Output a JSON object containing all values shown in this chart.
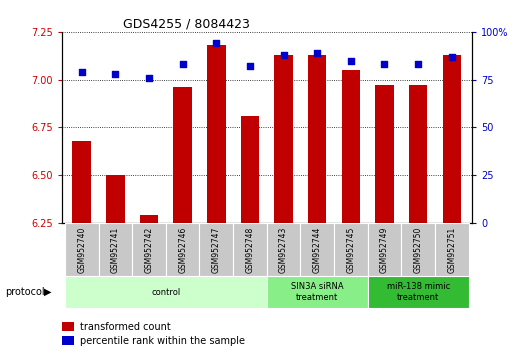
{
  "title": "GDS4255 / 8084423",
  "samples": [
    "GSM952740",
    "GSM952741",
    "GSM952742",
    "GSM952746",
    "GSM952747",
    "GSM952748",
    "GSM952743",
    "GSM952744",
    "GSM952745",
    "GSM952749",
    "GSM952750",
    "GSM952751"
  ],
  "transformed_count": [
    6.68,
    6.5,
    6.29,
    6.96,
    7.18,
    6.81,
    7.13,
    7.13,
    7.05,
    6.97,
    6.97,
    7.13
  ],
  "percentile_rank": [
    79,
    78,
    76,
    83,
    94,
    82,
    88,
    89,
    85,
    83,
    83,
    87
  ],
  "ylim_left": [
    6.25,
    7.25
  ],
  "ylim_right": [
    0,
    100
  ],
  "yticks_left": [
    6.25,
    6.5,
    6.75,
    7.0,
    7.25
  ],
  "yticks_right": [
    0,
    25,
    50,
    75,
    100
  ],
  "bar_color": "#C00000",
  "dot_color": "#0000CC",
  "bg_color": "#FFFFFF",
  "groups": [
    {
      "label": "control",
      "start": 0,
      "end": 5,
      "color": "#CCFFCC"
    },
    {
      "label": "SIN3A siRNA\ntreatment",
      "start": 6,
      "end": 8,
      "color": "#88EE88"
    },
    {
      "label": "miR-138 mimic\ntreatment",
      "start": 9,
      "end": 11,
      "color": "#33BB33"
    }
  ],
  "tick_label_color_left": "#CC0000",
  "tick_label_color_right": "#0000CC",
  "grid_color": "#000000",
  "legend_items": [
    {
      "label": "transformed count",
      "color": "#C00000"
    },
    {
      "label": "percentile rank within the sample",
      "color": "#0000CC"
    }
  ]
}
